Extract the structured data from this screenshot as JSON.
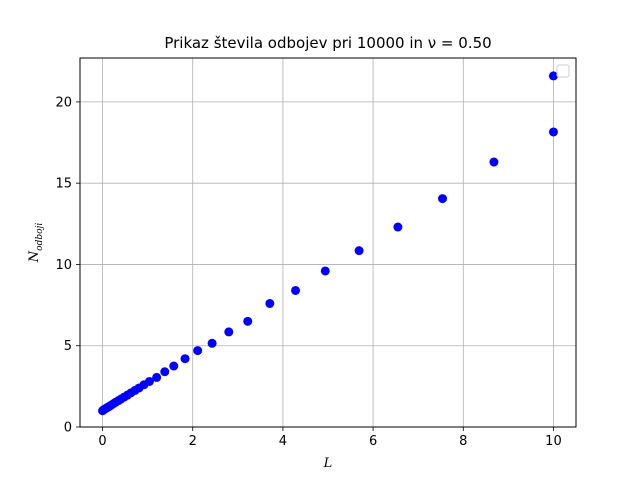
{
  "chart_data": {
    "type": "scatter",
    "title": "Prikaz števila odbojev pri 10000 in ν = 0.50",
    "xlabel": "L",
    "ylabel_main": "N",
    "ylabel_sub": "odboji",
    "xlim": [
      -0.5,
      10.5
    ],
    "ylim": [
      0,
      22.7
    ],
    "xticks": [
      0,
      2,
      4,
      6,
      8,
      10
    ],
    "yticks": [
      0,
      5,
      10,
      15,
      20
    ],
    "grid": true,
    "legend": "top-right",
    "marker_color": "#0000ff",
    "series": [
      {
        "x": [
          0.0,
          0.02,
          0.05,
          0.08,
          0.11,
          0.15,
          0.19,
          0.24,
          0.29,
          0.35,
          0.41,
          0.48,
          0.55,
          0.63,
          0.72,
          0.81,
          0.92,
          1.04,
          1.2,
          1.38,
          1.58,
          1.83,
          2.11,
          2.43,
          2.8,
          3.22,
          3.71,
          4.28,
          4.94,
          5.69,
          6.55,
          7.54,
          8.68,
          10.0
        ],
        "y": [
          1.0,
          1.05,
          1.1,
          1.15,
          1.2,
          1.27,
          1.34,
          1.43,
          1.52,
          1.62,
          1.72,
          1.84,
          1.96,
          2.1,
          2.25,
          2.4,
          2.6,
          2.8,
          3.05,
          3.4,
          3.75,
          4.2,
          4.7,
          5.15,
          5.85,
          6.5,
          7.6,
          8.4,
          9.6,
          10.85,
          12.3,
          14.05,
          16.3,
          18.15
        ]
      }
    ],
    "extra_point": {
      "x": 10.0,
      "y": 21.6
    }
  }
}
